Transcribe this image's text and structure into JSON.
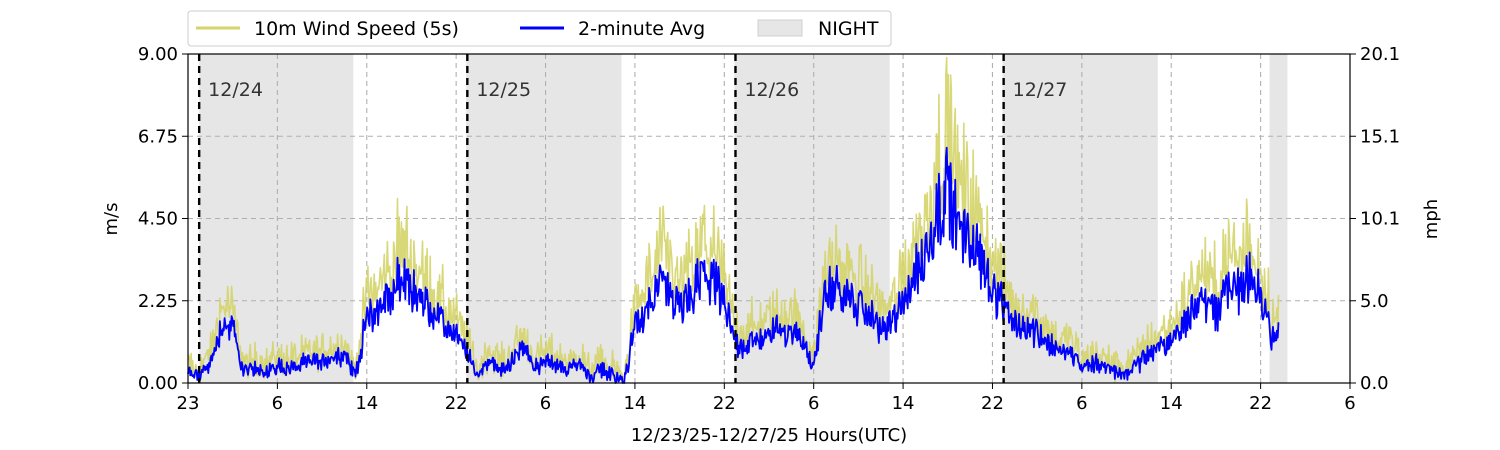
{
  "chart_data": {
    "type": "line",
    "xlabel": "12/23/25-12/27/25  Hours(UTC)",
    "ylabel_left": "m/s",
    "ylabel_right": "mph",
    "x_domain_hours": [
      23,
      127
    ],
    "ylim": [
      0,
      9
    ],
    "left_ticks": [
      {
        "value": 0,
        "label": "0.00"
      },
      {
        "value": 2.25,
        "label": "2.25"
      },
      {
        "value": 4.5,
        "label": "4.50"
      },
      {
        "value": 6.75,
        "label": "6.75"
      },
      {
        "value": 9,
        "label": "9.00"
      }
    ],
    "right_ticks": [
      {
        "value": 0,
        "label": "0.0"
      },
      {
        "value": 2.25,
        "label": "5.0"
      },
      {
        "value": 4.5,
        "label": "10.1"
      },
      {
        "value": 6.75,
        "label": "15.1"
      },
      {
        "value": 9,
        "label": "20.1"
      }
    ],
    "x_ticks": [
      {
        "hour": 23,
        "label": "23"
      },
      {
        "hour": 31,
        "label": "6"
      },
      {
        "hour": 39,
        "label": "14"
      },
      {
        "hour": 47,
        "label": "22"
      },
      {
        "hour": 55,
        "label": "6"
      },
      {
        "hour": 63,
        "label": "14"
      },
      {
        "hour": 71,
        "label": "22"
      },
      {
        "hour": 79,
        "label": "6"
      },
      {
        "hour": 87,
        "label": "14"
      },
      {
        "hour": 95,
        "label": "22"
      },
      {
        "hour": 103,
        "label": "6"
      },
      {
        "hour": 111,
        "label": "14"
      },
      {
        "hour": 119,
        "label": "22"
      },
      {
        "hour": 127,
        "label": "6"
      }
    ],
    "night_periods": [
      [
        24,
        37.8
      ],
      [
        47.9,
        61.8
      ],
      [
        71.9,
        85.8
      ],
      [
        95.9,
        109.8
      ],
      [
        119.8,
        121.4
      ]
    ],
    "day_markers": [
      {
        "hour": 24,
        "label": "12/24"
      },
      {
        "hour": 48,
        "label": "12/25"
      },
      {
        "hour": 72,
        "label": "12/26"
      },
      {
        "hour": 96,
        "label": "12/27"
      }
    ],
    "legend": {
      "placement": "top",
      "entries": [
        {
          "label": "10m Wind Speed (5s)",
          "color": "#d4d46a",
          "kind": "line"
        },
        {
          "label": "2-minute Avg",
          "color": "#0000ff",
          "kind": "line"
        },
        {
          "label": "NIGHT",
          "color": "#e6e6e6",
          "kind": "patch"
        }
      ]
    },
    "series": [
      {
        "name": "2-minute Avg",
        "color": "#0000ff",
        "x": [
          23,
          24,
          25,
          26,
          27,
          28,
          29,
          30,
          31,
          32,
          33,
          34,
          35,
          36,
          37,
          38,
          39,
          40,
          41,
          42,
          43,
          44,
          45,
          46,
          47,
          48,
          49,
          50,
          51,
          52,
          53,
          54,
          55,
          56,
          57,
          58,
          59,
          60,
          61,
          62,
          63,
          64,
          65,
          66,
          67,
          68,
          69,
          70,
          71,
          72,
          73,
          74,
          75,
          76,
          77,
          78,
          79,
          80,
          81,
          82,
          83,
          84,
          85,
          86,
          87,
          88,
          89,
          90,
          91,
          92,
          93,
          94,
          95,
          96,
          97,
          98,
          99,
          100,
          101,
          102,
          103,
          104,
          105,
          106,
          107,
          108,
          109,
          110,
          111,
          112,
          113,
          114,
          115,
          116,
          117,
          118,
          119,
          120
        ],
        "values": [
          0.3,
          0.2,
          0.5,
          1.6,
          1.5,
          0.3,
          0.4,
          0.3,
          0.5,
          0.4,
          0.5,
          0.6,
          0.6,
          0.7,
          0.8,
          0.2,
          1.8,
          2.0,
          2.4,
          2.8,
          2.6,
          2.2,
          1.9,
          1.5,
          1.3,
          0.8,
          0.2,
          0.7,
          0.3,
          0.6,
          1.0,
          0.4,
          0.6,
          0.5,
          0.3,
          0.6,
          0.1,
          0.4,
          0.2,
          0.0,
          1.5,
          2.0,
          2.7,
          2.5,
          2.0,
          2.4,
          2.9,
          2.8,
          2.2,
          1.1,
          1.0,
          1.2,
          1.3,
          1.5,
          1.4,
          1.2,
          0.4,
          2.5,
          2.6,
          2.3,
          2.1,
          1.9,
          1.5,
          1.6,
          2.3,
          2.9,
          3.5,
          4.6,
          5.4,
          4.2,
          4.0,
          3.4,
          2.6,
          2.0,
          1.5,
          1.6,
          1.4,
          1.1,
          0.8,
          0.9,
          0.4,
          0.6,
          0.4,
          0.3,
          0.3,
          0.5,
          0.8,
          1.0,
          1.1,
          1.6,
          2.1,
          2.3,
          1.9,
          2.7,
          2.5,
          3.0,
          2.6,
          1.3
        ]
      }
    ]
  }
}
